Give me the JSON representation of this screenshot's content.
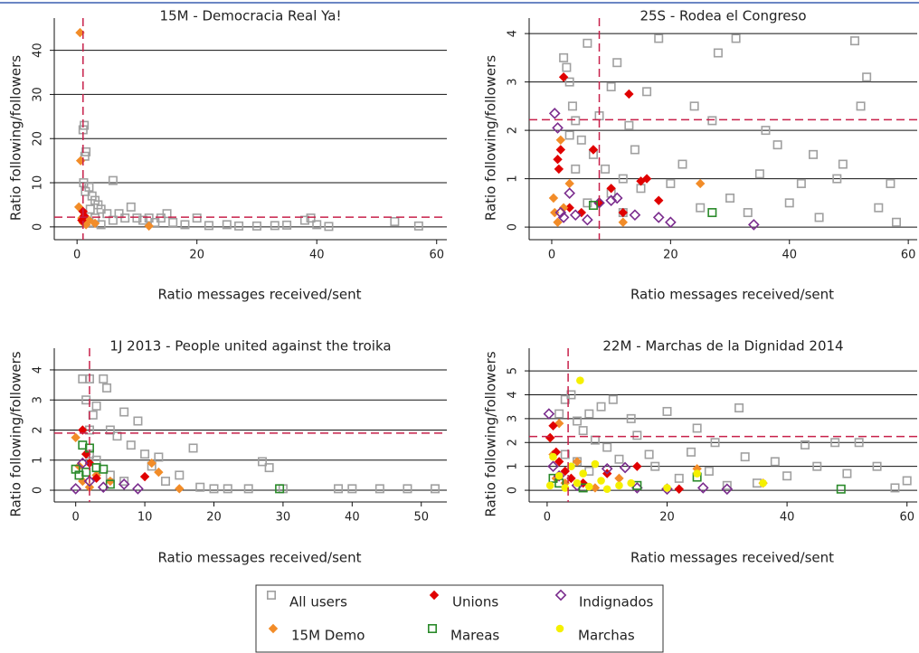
{
  "chart_data": [
    {
      "type": "scatter",
      "title": "15M - Democracia Real Ya!",
      "xlabel": "Ratio messages received/sent",
      "ylabel": "Ratio following/followers",
      "xlim": [
        -3.8,
        61.7
      ],
      "ylim": [
        -2.9,
        47.3
      ],
      "xticks": [
        0,
        20,
        40,
        60
      ],
      "yticks": [
        0,
        10,
        20,
        30,
        40
      ],
      "reference_lines": {
        "x": 1,
        "y": 2.2,
        "color": "#c8204a"
      },
      "series": [
        {
          "name": "All users",
          "color": "#a0a0a0",
          "marker": "square-open",
          "x": [
            1,
            1.2,
            1.3,
            1.5,
            1.1,
            1.4,
            2,
            2.5,
            3,
            3.5,
            4,
            5,
            6,
            7,
            8,
            9,
            10,
            11,
            12,
            13,
            14,
            15,
            16,
            18,
            20,
            22,
            25,
            27,
            30,
            33,
            35,
            38,
            39,
            40,
            42,
            53,
            57,
            2,
            3,
            4,
            6,
            2.2
          ],
          "y": [
            22,
            23,
            16,
            17,
            10,
            8,
            9,
            7,
            6,
            5,
            4,
            3,
            10.5,
            3,
            2,
            4.5,
            2,
            1.5,
            2,
            1,
            2,
            3,
            1,
            0.5,
            2,
            0.3,
            0.5,
            0.2,
            0.2,
            0.3,
            0.4,
            1.5,
            2,
            0.5,
            0.1,
            1.2,
            0.2,
            1,
            2,
            0.5,
            1.5,
            4
          ]
        },
        {
          "name": "15M Demo",
          "color": "#f28c28",
          "marker": "diamond",
          "x": [
            0.5,
            0.6,
            0.3,
            0.8,
            1,
            1.5,
            2,
            3,
            12
          ],
          "y": [
            44,
            15,
            4.5,
            2,
            1,
            0.5,
            1.5,
            0.8,
            0.2
          ]
        },
        {
          "name": "Unions",
          "color": "#e00000",
          "marker": "diamond",
          "x": [
            1,
            1.2,
            0.8
          ],
          "y": [
            3.5,
            2.5,
            1.5
          ]
        }
      ]
    },
    {
      "type": "scatter",
      "title": "25S - Rodea el Congreso",
      "xlabel": "Ratio messages received/sent",
      "ylabel": "Ratio following/followers",
      "xlim": [
        -3.8,
        61.5
      ],
      "ylim": [
        -0.26,
        4.32
      ],
      "xticks": [
        0,
        20,
        40,
        60
      ],
      "yticks": [
        0,
        1,
        2,
        3,
        4
      ],
      "reference_lines": {
        "x": 8,
        "y": 2.22,
        "color": "#c8204a"
      },
      "series": [
        {
          "name": "All users",
          "color": "#a0a0a0",
          "marker": "square-open",
          "x": [
            2,
            2.5,
            3,
            3.5,
            4,
            5,
            6,
            7,
            8,
            9,
            10,
            11,
            12,
            13,
            14,
            15,
            16,
            18,
            20,
            22,
            24,
            25,
            27,
            28,
            30,
            31,
            33,
            35,
            36,
            38,
            40,
            42,
            44,
            45,
            48,
            49,
            51,
            52,
            53,
            55,
            57,
            58,
            3,
            4,
            6,
            10,
            12
          ],
          "y": [
            3.5,
            3.3,
            3.0,
            2.5,
            2.2,
            1.8,
            3.8,
            1.5,
            2.3,
            1.2,
            2.9,
            3.4,
            1.0,
            2.1,
            1.6,
            0.8,
            2.8,
            3.9,
            0.9,
            1.3,
            2.5,
            0.4,
            2.2,
            3.6,
            0.6,
            3.9,
            0.3,
            1.1,
            2.0,
            1.7,
            0.5,
            0.9,
            1.5,
            0.2,
            1.0,
            1.3,
            3.85,
            2.5,
            3.1,
            0.4,
            0.9,
            0.1,
            1.9,
            1.2,
            0.5,
            0.7,
            0.3
          ]
        },
        {
          "name": "Unions",
          "color": "#e00000",
          "marker": "diamond",
          "x": [
            1,
            1.2,
            1.5,
            2,
            3,
            5,
            7,
            8,
            10,
            12,
            13,
            15,
            16,
            18
          ],
          "y": [
            1.4,
            1.2,
            1.6,
            3.1,
            0.4,
            0.3,
            1.6,
            0.5,
            0.8,
            0.3,
            2.75,
            0.95,
            1.0,
            0.55
          ]
        },
        {
          "name": "15M Demo",
          "color": "#f28c28",
          "marker": "diamond",
          "x": [
            0.3,
            0.5,
            1,
            1.5,
            2,
            3,
            25,
            12
          ],
          "y": [
            0.6,
            0.3,
            0.1,
            1.8,
            0.4,
            0.9,
            0.9,
            0.1
          ]
        },
        {
          "name": "Indignados",
          "color": "#7b2d8e",
          "marker": "diamond-open",
          "x": [
            0.5,
            1,
            1.5,
            2,
            3,
            4,
            6,
            8,
            10,
            11,
            14,
            18,
            20,
            34
          ],
          "y": [
            2.35,
            2.05,
            0.3,
            0.2,
            0.7,
            0.25,
            0.15,
            0.5,
            0.55,
            0.6,
            0.25,
            0.2,
            0.1,
            0.05
          ]
        },
        {
          "name": "Mareas",
          "color": "#2a8a2a",
          "marker": "square-open",
          "x": [
            7,
            27
          ],
          "y": [
            0.45,
            0.3
          ]
        }
      ]
    },
    {
      "type": "scatter",
      "title": "1J 2013 - People united against the troika",
      "xlabel": "Ratio messages received/sent",
      "ylabel": "Ratio following/followers",
      "xlim": [
        -3.1,
        53.7
      ],
      "ylim": [
        -0.39,
        4.72
      ],
      "xticks": [
        0,
        10,
        20,
        30,
        40,
        50
      ],
      "yticks": [
        0,
        1,
        2,
        3,
        4
      ],
      "reference_lines": {
        "x": 2,
        "y": 1.9,
        "color": "#c8204a"
      },
      "series": [
        {
          "name": "All users",
          "color": "#a0a0a0",
          "marker": "square-open",
          "x": [
            1,
            1.5,
            2,
            2.5,
            2,
            3,
            4,
            4.5,
            5,
            6,
            7,
            8,
            9,
            10,
            11,
            12,
            13,
            15,
            17,
            18,
            20,
            22,
            25,
            27,
            28,
            30,
            38,
            40,
            44,
            48,
            52,
            3,
            5,
            7,
            2
          ],
          "y": [
            3.7,
            3.0,
            3.7,
            2.5,
            2.0,
            2.8,
            3.7,
            3.4,
            2.0,
            1.8,
            2.6,
            1.5,
            2.3,
            1.2,
            0.8,
            1.1,
            0.3,
            0.5,
            1.4,
            0.1,
            0.05,
            0.05,
            0.05,
            0.95,
            0.75,
            0.05,
            0.05,
            0.05,
            0.05,
            0.05,
            0.05,
            1.0,
            0.5,
            0.3,
            1.2
          ]
        },
        {
          "name": "15M Demo",
          "color": "#f28c28",
          "marker": "diamond",
          "x": [
            0,
            0.5,
            1,
            2,
            3,
            5,
            11,
            12,
            15
          ],
          "y": [
            1.75,
            0.8,
            0.3,
            0.1,
            0.5,
            0.3,
            0.9,
            0.6,
            0.05
          ]
        },
        {
          "name": "Unions",
          "color": "#e00000",
          "marker": "diamond",
          "x": [
            1,
            1.5,
            2,
            3,
            10
          ],
          "y": [
            2.0,
            1.2,
            0.9,
            0.4,
            0.45
          ]
        },
        {
          "name": "Mareas",
          "color": "#2a8a2a",
          "marker": "square-open",
          "x": [
            0,
            0.5,
            1,
            1.5,
            2,
            3,
            4,
            5,
            29.5
          ],
          "y": [
            0.7,
            0.5,
            1.5,
            0.6,
            1.4,
            0.75,
            0.7,
            0.2,
            0.05
          ]
        },
        {
          "name": "Indignados",
          "color": "#7b2d8e",
          "marker": "diamond-open",
          "x": [
            0,
            1,
            2,
            4,
            7,
            9
          ],
          "y": [
            0.05,
            0.9,
            0.3,
            0.1,
            0.2,
            0.05
          ]
        }
      ]
    },
    {
      "type": "scatter",
      "title": "22M - Marchas de la Dignidad 2014",
      "xlabel": "Ratio messages received/sent",
      "ylabel": "Ratio following/followers",
      "xlim": [
        -3,
        61.7
      ],
      "ylim": [
        -0.49,
        5.95
      ],
      "xticks": [
        0,
        20,
        40,
        60
      ],
      "yticks": [
        0,
        1,
        2,
        3,
        4,
        5
      ],
      "reference_lines": {
        "x": 3.5,
        "y": 2.25,
        "color": "#c8204a"
      },
      "series": [
        {
          "name": "All users",
          "color": "#a0a0a0",
          "marker": "square-open",
          "x": [
            2,
            3,
            4,
            5,
            6,
            7,
            8,
            9,
            10,
            11,
            12,
            14,
            15,
            17,
            18,
            20,
            22,
            24,
            25,
            27,
            28,
            30,
            32,
            33,
            35,
            38,
            40,
            43,
            45,
            48,
            50,
            52,
            55,
            58,
            60,
            3,
            5,
            7
          ],
          "y": [
            3.2,
            3.8,
            4.0,
            2.9,
            2.5,
            3.2,
            2.1,
            3.5,
            1.8,
            3.8,
            1.3,
            3.0,
            2.3,
            1.5,
            1.0,
            3.3,
            0.5,
            1.6,
            2.6,
            0.8,
            2.0,
            0.2,
            3.45,
            1.4,
            0.3,
            1.2,
            0.6,
            1.9,
            1.0,
            2.0,
            0.7,
            2.0,
            1.0,
            0.1,
            0.4,
            1.5,
            1.2,
            0.8
          ]
        },
        {
          "name": "15M Demo",
          "color": "#f28c28",
          "marker": "diamond",
          "x": [
            0.5,
            1,
            1.5,
            2,
            3,
            5,
            8,
            12,
            25,
            36
          ],
          "y": [
            2.2,
            1.5,
            0.5,
            2.8,
            0.3,
            1.2,
            0.1,
            0.5,
            0.9,
            0.3
          ]
        },
        {
          "name": "Unions",
          "color": "#e00000",
          "marker": "diamond",
          "x": [
            0.5,
            1,
            1.5,
            2,
            3,
            4,
            6,
            10,
            15,
            22
          ],
          "y": [
            2.2,
            2.7,
            1.6,
            1.2,
            0.8,
            0.5,
            0.3,
            0.7,
            1.0,
            0.05
          ]
        },
        {
          "name": "Indignados",
          "color": "#7b2d8e",
          "marker": "diamond-open",
          "x": [
            0.3,
            1,
            2,
            5,
            10,
            13,
            15,
            20,
            26,
            30
          ],
          "y": [
            3.2,
            1.0,
            0.6,
            0.2,
            0.9,
            0.95,
            0.1,
            0.05,
            0.1,
            0.05
          ]
        },
        {
          "name": "Mareas",
          "color": "#2a8a2a",
          "marker": "square-open",
          "x": [
            1,
            2,
            6,
            15,
            25,
            49
          ],
          "y": [
            0.5,
            0.3,
            0.1,
            0.2,
            0.55,
            0.05
          ]
        },
        {
          "name": "Marchas",
          "color": "#f5f000",
          "marker": "circle",
          "x": [
            0.5,
            1,
            2,
            3,
            4,
            5,
            6,
            7,
            8,
            9,
            10,
            12,
            14,
            20,
            25,
            36,
            5.5
          ],
          "y": [
            0.2,
            1.4,
            0.6,
            0.1,
            1.0,
            0.3,
            0.7,
            0.15,
            1.1,
            0.4,
            0.05,
            0.2,
            0.3,
            0.1,
            0.7,
            0.3,
            4.6
          ]
        }
      ]
    }
  ]
}
